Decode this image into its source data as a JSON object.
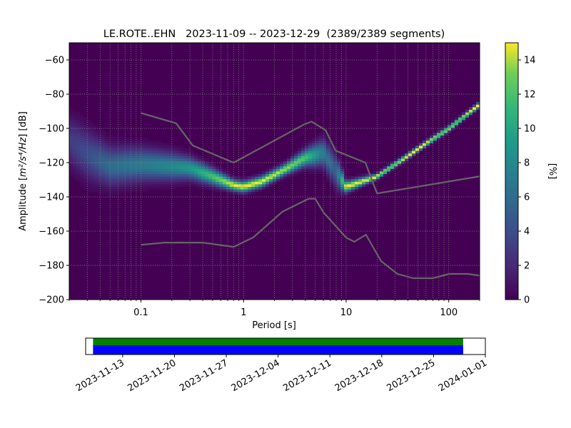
{
  "chart_data": [
    {
      "type": "heatmap",
      "title": "LE.ROTE..EHN   2023-11-09 -- 2023-12-29  (2389/2389 segments)",
      "xlabel": "Period [s]",
      "ylabel_prefix": "Amplitude [",
      "ylabel_math": "m²/s⁴/Hz",
      "ylabel_suffix": "] [dB]",
      "x_scale": "log",
      "xlim": [
        0.02,
        200
      ],
      "ylim": [
        -200,
        -50
      ],
      "x_ticks": [
        {
          "value": 0.1,
          "label": "0.1"
        },
        {
          "value": 1,
          "label": "1"
        },
        {
          "value": 10,
          "label": "10"
        },
        {
          "value": 100,
          "label": "100"
        }
      ],
      "y_ticks": [
        {
          "value": -60,
          "label": "−60"
        },
        {
          "value": -80,
          "label": "−80"
        },
        {
          "value": -100,
          "label": "−100"
        },
        {
          "value": -120,
          "label": "−120"
        },
        {
          "value": -140,
          "label": "−140"
        },
        {
          "value": -160,
          "label": "−160"
        },
        {
          "value": -180,
          "label": "−180"
        },
        {
          "value": -200,
          "label": "−200"
        }
      ],
      "grid": true,
      "colormap": "viridis",
      "colorbar": {
        "label": "[%]",
        "range": [
          0,
          15
        ],
        "ticks": [
          {
            "value": 0,
            "label": "0"
          },
          {
            "value": 2,
            "label": "2"
          },
          {
            "value": 4,
            "label": "4"
          },
          {
            "value": 6,
            "label": "6"
          },
          {
            "value": 8,
            "label": "8"
          },
          {
            "value": 10,
            "label": "10"
          },
          {
            "value": 12,
            "label": "12"
          },
          {
            "value": 14,
            "label": "14"
          }
        ]
      },
      "density_ridge": [
        {
          "period": 0.02,
          "db": -107,
          "width": 9,
          "peak": 3
        },
        {
          "period": 0.03,
          "db": -115,
          "width": 9,
          "peak": 4
        },
        {
          "period": 0.05,
          "db": -122,
          "width": 7,
          "peak": 6
        },
        {
          "period": 0.1,
          "db": -121,
          "width": 6,
          "peak": 7
        },
        {
          "period": 0.2,
          "db": -122,
          "width": 5,
          "peak": 8
        },
        {
          "period": 0.3,
          "db": -123,
          "width": 4,
          "peak": 9
        },
        {
          "period": 0.5,
          "db": -128,
          "width": 3,
          "peak": 12
        },
        {
          "period": 0.8,
          "db": -133,
          "width": 2,
          "peak": 15
        },
        {
          "period": 1.0,
          "db": -134,
          "width": 2,
          "peak": 15
        },
        {
          "period": 1.5,
          "db": -131,
          "width": 2,
          "peak": 15
        },
        {
          "period": 2.5,
          "db": -124,
          "width": 2,
          "peak": 14
        },
        {
          "period": 4.0,
          "db": -117,
          "width": 3,
          "peak": 12
        },
        {
          "period": 6.0,
          "db": -114,
          "width": 5,
          "peak": 7
        },
        {
          "period": 8.0,
          "db": -125,
          "width": 6,
          "peak": 5
        },
        {
          "period": 10,
          "db": -134,
          "width": 2,
          "peak": 15
        },
        {
          "period": 20,
          "db": -128,
          "width": 1,
          "peak": 15
        },
        {
          "period": 50,
          "db": -112,
          "width": 1,
          "peak": 15
        },
        {
          "period": 100,
          "db": -100,
          "width": 1,
          "peak": 15
        },
        {
          "period": 200,
          "db": -86,
          "width": 1,
          "peak": 15
        }
      ],
      "noise_models": [
        {
          "name": "high",
          "points": [
            [
              0.1,
              -91
            ],
            [
              0.22,
              -97
            ],
            [
              0.32,
              -110
            ],
            [
              0.8,
              -120
            ],
            [
              3.8,
              -98
            ],
            [
              4.6,
              -96
            ],
            [
              6.3,
              -101
            ],
            [
              7.9,
              -113
            ],
            [
              15.4,
              -120
            ],
            [
              20,
              -138
            ],
            [
              200,
              -128
            ]
          ]
        },
        {
          "name": "low",
          "points": [
            [
              0.1,
              -168
            ],
            [
              0.17,
              -166.7
            ],
            [
              0.4,
              -166.7
            ],
            [
              0.8,
              -169.2
            ],
            [
              1.24,
              -163.7
            ],
            [
              2.4,
              -148.6
            ],
            [
              4.3,
              -141.1
            ],
            [
              5.0,
              -141.1
            ],
            [
              6.0,
              -149
            ],
            [
              10,
              -163.8
            ],
            [
              12,
              -166.2
            ],
            [
              15.6,
              -162.1
            ],
            [
              21.9,
              -177.5
            ],
            [
              31.6,
              -185
            ],
            [
              45,
              -187.5
            ],
            [
              70,
              -187.5
            ],
            [
              101,
              -185
            ],
            [
              154,
              -185
            ],
            [
              200,
              -186
            ]
          ]
        }
      ]
    },
    {
      "type": "timeline",
      "x_ticks": [
        {
          "value": "2023-11-13",
          "label": "2023-11-13"
        },
        {
          "value": "2023-11-20",
          "label": "2023-11-20"
        },
        {
          "value": "2023-11-27",
          "label": "2023-11-27"
        },
        {
          "value": "2023-12-04",
          "label": "2023-12-04"
        },
        {
          "value": "2023-12-11",
          "label": "2023-12-11"
        },
        {
          "value": "2023-12-18",
          "label": "2023-12-18"
        },
        {
          "value": "2023-12-25",
          "label": "2023-12-25"
        },
        {
          "value": "2024-01-01",
          "label": "2024-01-01"
        }
      ],
      "xlim": [
        "2023-11-08",
        "2024-01-01"
      ],
      "coverage": [
        {
          "start": "2023-11-09",
          "end": "2023-12-29",
          "color": "#008000"
        },
        {
          "start": "2023-11-09",
          "end": "2023-12-29",
          "color": "#0000ff"
        }
      ]
    }
  ]
}
